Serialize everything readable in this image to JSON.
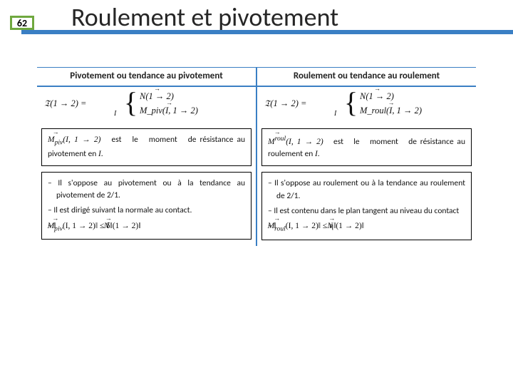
{
  "page_number": "62",
  "title": "Roulement et pivotement",
  "colors": {
    "accent_blue": "#3a7fc4",
    "badge_green": "#6fa83f",
    "text": "#262626"
  },
  "left": {
    "heading": "Pivotement ou tendance au pivotement",
    "torsor_lhs": "𝔗(1 → 2) =",
    "torsor_n": "N(1 → 2)",
    "torsor_m": "M_piv(I, 1 → 2)",
    "torsor_sub": "I",
    "box1": "M_piv(I, 1 → 2)   est   le   moment   de résistance au pivotement en I.",
    "box2a": "Il s'oppose au pivotement ou à la tendance au pivotement de 2/1.",
    "box2b": "Il est dirigé suivant la normale au contact.",
    "box2c": "‖M_piv(I, 1 → 2)‖ ≤ δ‖N(1 → 2)‖"
  },
  "right": {
    "heading": "Roulement ou tendance au roulement",
    "torsor_lhs": "𝔗(1 → 2) =",
    "torsor_n": "N(1 → 2)",
    "torsor_m": "M_roul(I, 1 → 2)",
    "torsor_sub": "I",
    "box1": "M_roul(I, 1 → 2)   est   le   moment   de résistance au roulement en I.",
    "box2a": "Il s'oppose au roulement ou à la tendance au roulement de 2/1.",
    "box2b": "Il est contenu dans le plan tangent au niveau du contact",
    "box2c": "‖M_roul(I, 1 → 2)‖ ≤ η‖N(1 → 2)‖"
  }
}
